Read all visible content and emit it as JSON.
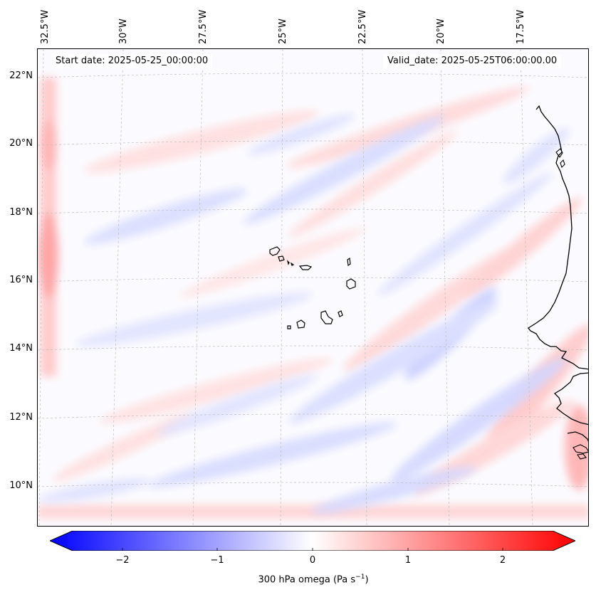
{
  "map": {
    "start_date": "Start date: 2025-05-25_00:00:00",
    "valid_date": "Valid_date: 2025-05-25T06:00:00.00",
    "lon_labels": [
      "32.5°W",
      "30°W",
      "27.5°W",
      "25°W",
      "22.5°W",
      "20°W",
      "17.5°W"
    ],
    "lat_labels": [
      "22°N",
      "20°N",
      "18°N",
      "16°N",
      "14°N",
      "12°N",
      "10°N"
    ],
    "colorbar": {
      "ticks": [
        "−2",
        "−1",
        "0",
        "1",
        "2"
      ],
      "label_main": "300 hPa omega (Pa s",
      "label_sup": "−1",
      "label_end": ")",
      "min_color": "#0000ff",
      "mid_color": "#ffffff",
      "max_color": "#ff0000"
    }
  }
}
